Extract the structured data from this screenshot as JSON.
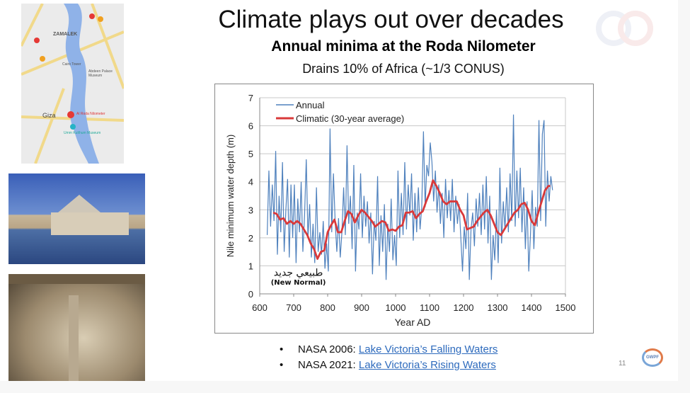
{
  "slide": {
    "title": "Climate plays out over decades",
    "subtitle": "Annual minima at the Roda Nilometer",
    "caption": "Drains 10% of Africa (~1/3 CONUS)",
    "page_number": "11",
    "logo_text": "GWPF",
    "bullets": [
      {
        "prefix": "NASA 2006: ",
        "link": "Lake Victoria’s Falling Waters"
      },
      {
        "prefix": "NASA 2021: ",
        "link": "Lake Victoria’s Rising Waters"
      }
    ],
    "map": {
      "labels": [
        "ZAMALEK",
        "Giza",
        "Al Roda Nilometer",
        "Cairo Tower",
        "Abdeen Palace Museum",
        "Umm Kulthum Museum"
      ]
    },
    "colors": {
      "link": "#2e6bbd",
      "nile": "#8fb2e8",
      "pin": "#e53935"
    }
  },
  "chart_data": {
    "type": "line",
    "title": "",
    "xlabel": "Year AD",
    "ylabel": "Nile  minimum water depth (m)",
    "xlim": [
      600,
      1500
    ],
    "ylim": [
      0,
      7
    ],
    "xticks": [
      "600",
      "700",
      "800",
      "900",
      "1000",
      "1100",
      "1200",
      "1300",
      "1400",
      "1500"
    ],
    "yticks": [
      "0",
      "1",
      "2",
      "3",
      "4",
      "5",
      "6",
      "7"
    ],
    "grid": "horizontal",
    "legend": "top-left",
    "annotations": [
      {
        "text": "طبيعي جديد",
        "x": 770,
        "y": 0.75
      },
      {
        "text": "(New Normal)",
        "x": 770,
        "y": 0.45
      }
    ],
    "series": [
      {
        "name": "Annual",
        "color": "#4f81bd",
        "x_start": 622,
        "x_step": 5,
        "values": [
          2.1,
          4.4,
          2.4,
          3.9,
          2.6,
          5.1,
          1.4,
          3.5,
          2.2,
          4.7,
          1.5,
          3.0,
          4.1,
          1.3,
          3.9,
          2.0,
          3.9,
          1.1,
          3.4,
          2.2,
          4.0,
          1.5,
          2.8,
          4.8,
          2.0,
          3.2,
          1.3,
          2.5,
          1.1,
          3.8,
          1.5,
          2.2,
          1.4,
          2.6,
          0.9,
          1.8,
          0.8,
          5.9,
          2.2,
          4.3,
          2.6,
          1.5,
          2.7,
          1.3,
          2.2,
          3.8,
          2.1,
          5.3,
          2.5,
          3.5,
          1.6,
          4.6,
          0.8,
          2.9,
          2.3,
          4.3,
          2.0,
          3.5,
          2.4,
          3.3,
          1.8,
          2.9,
          0.7,
          2.6,
          1.9,
          4.2,
          1.0,
          2.8,
          1.5,
          3.2,
          0.5,
          2.5,
          1.5,
          3.4,
          1.2,
          2.1,
          1.0,
          4.4,
          2.0,
          3.6,
          2.1,
          4.7,
          2.3,
          3.9,
          2.8,
          4.3,
          1.9,
          3.6,
          2.2,
          3.8,
          2.3,
          3.1,
          5.8,
          3.1,
          4.6,
          4.2,
          5.4,
          4.7,
          3.3,
          4.4,
          2.9,
          3.9,
          2.5,
          3.6,
          2.0,
          4.1,
          2.7,
          3.7,
          2.6,
          4.1,
          2.2,
          3.5,
          2.5,
          3.2,
          2.0,
          0.8,
          2.4,
          1.6,
          3.6,
          0.5,
          2.3,
          2.9,
          1.7,
          3.4,
          2.4,
          3.6,
          2.1,
          3.9,
          2.3,
          4.2,
          1.8,
          3.5,
          0.5,
          2.1,
          1.2,
          3.0,
          1.1,
          4.5,
          1.8,
          3.3,
          2.3,
          3.8,
          2.2,
          4.3,
          2.6,
          6.4,
          2.4,
          4.4,
          2.7,
          4.5,
          2.2,
          3.8,
          1.6,
          3.3,
          0.8,
          2.1,
          3.7,
          1.6,
          3.1,
          2.4,
          6.2,
          2.6,
          5.7,
          6.2,
          2.4,
          4.4,
          3.3,
          4.2,
          3.7
        ]
      },
      {
        "name": "Climatic (30-year average)",
        "color": "#d9393a",
        "x": [
          640,
          650,
          660,
          670,
          680,
          690,
          700,
          710,
          720,
          730,
          740,
          750,
          760,
          770,
          780,
          790,
          800,
          810,
          820,
          830,
          840,
          850,
          860,
          870,
          880,
          890,
          900,
          910,
          920,
          930,
          940,
          950,
          960,
          970,
          980,
          990,
          1000,
          1010,
          1020,
          1030,
          1040,
          1050,
          1060,
          1070,
          1080,
          1090,
          1100,
          1110,
          1120,
          1130,
          1140,
          1150,
          1160,
          1170,
          1180,
          1190,
          1200,
          1210,
          1220,
          1230,
          1240,
          1250,
          1260,
          1270,
          1280,
          1290,
          1300,
          1310,
          1320,
          1330,
          1340,
          1350,
          1360,
          1370,
          1380,
          1390,
          1400,
          1410,
          1420,
          1430,
          1440,
          1450,
          1455
        ],
        "values": [
          2.9,
          2.85,
          2.65,
          2.7,
          2.5,
          2.6,
          2.5,
          2.6,
          2.5,
          2.3,
          2.1,
          1.8,
          1.6,
          1.25,
          1.5,
          1.55,
          2.2,
          2.45,
          2.65,
          2.2,
          2.2,
          2.6,
          2.95,
          2.85,
          2.55,
          2.8,
          3.0,
          2.9,
          2.75,
          2.6,
          2.4,
          2.5,
          2.6,
          2.55,
          2.25,
          2.3,
          2.25,
          2.4,
          2.45,
          2.9,
          2.9,
          2.95,
          2.7,
          2.85,
          2.95,
          3.3,
          3.6,
          4.05,
          3.85,
          3.6,
          3.3,
          3.2,
          3.3,
          3.3,
          3.3,
          3.0,
          2.8,
          2.3,
          2.35,
          2.4,
          2.6,
          2.75,
          2.9,
          3.0,
          2.8,
          2.5,
          2.2,
          2.1,
          2.3,
          2.5,
          2.7,
          2.9,
          3.0,
          3.2,
          3.25,
          3.0,
          2.6,
          2.45,
          2.9,
          3.3,
          3.7,
          3.85,
          3.85
        ]
      }
    ]
  }
}
